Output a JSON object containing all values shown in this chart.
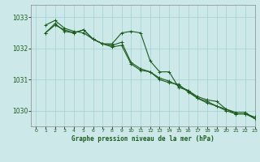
{
  "title": "Graphe pression niveau de la mer (hPa)",
  "background_color": "#cce8e8",
  "grid_color": "#aad4d4",
  "line_color": "#1a5c1a",
  "xlim": [
    -0.5,
    23
  ],
  "ylim": [
    1029.5,
    1033.4
  ],
  "yticks": [
    1030,
    1031,
    1032,
    1033
  ],
  "xticks": [
    0,
    1,
    2,
    3,
    4,
    5,
    6,
    7,
    8,
    9,
    10,
    11,
    12,
    13,
    14,
    15,
    16,
    17,
    18,
    19,
    20,
    21,
    22,
    23
  ],
  "series1_x": [
    1,
    2,
    3,
    4,
    5,
    6,
    7,
    8,
    9,
    10,
    11,
    12,
    13,
    14,
    15,
    16,
    17,
    18,
    19,
    20,
    21,
    22,
    23
  ],
  "series1_y": [
    1032.75,
    1032.9,
    1032.65,
    1032.55,
    1032.5,
    1032.3,
    1032.15,
    1032.05,
    1032.1,
    1031.5,
    1031.3,
    1031.25,
    1031.0,
    1030.9,
    1030.85,
    1030.6,
    1030.4,
    1030.3,
    1030.15,
    1030.05,
    1029.9,
    1029.9,
    1029.8
  ],
  "series2_x": [
    1,
    2,
    3,
    4,
    5,
    6,
    7,
    8,
    9,
    10,
    11,
    12,
    13,
    14,
    15,
    16,
    17,
    18,
    19,
    20,
    21,
    22,
    23
  ],
  "series2_y": [
    1032.5,
    1032.75,
    1032.6,
    1032.5,
    1032.6,
    1032.3,
    1032.15,
    1032.1,
    1032.2,
    1031.55,
    1031.35,
    1031.25,
    1031.05,
    1030.95,
    1030.8,
    1030.65,
    1030.4,
    1030.25,
    1030.15,
    1030.0,
    1029.9,
    1029.9,
    1029.75
  ],
  "series3_x": [
    1,
    2,
    3,
    4,
    5,
    6,
    7,
    8,
    9,
    10,
    11,
    12,
    13,
    14,
    15,
    16,
    17,
    18,
    19,
    20,
    21,
    22,
    23
  ],
  "series3_y": [
    1032.5,
    1032.8,
    1032.55,
    1032.5,
    1032.6,
    1032.3,
    1032.15,
    1032.15,
    1032.5,
    1032.55,
    1032.5,
    1031.6,
    1031.25,
    1031.25,
    1030.75,
    1030.65,
    1030.45,
    1030.35,
    1030.3,
    1030.05,
    1029.95,
    1029.95,
    1029.75
  ]
}
